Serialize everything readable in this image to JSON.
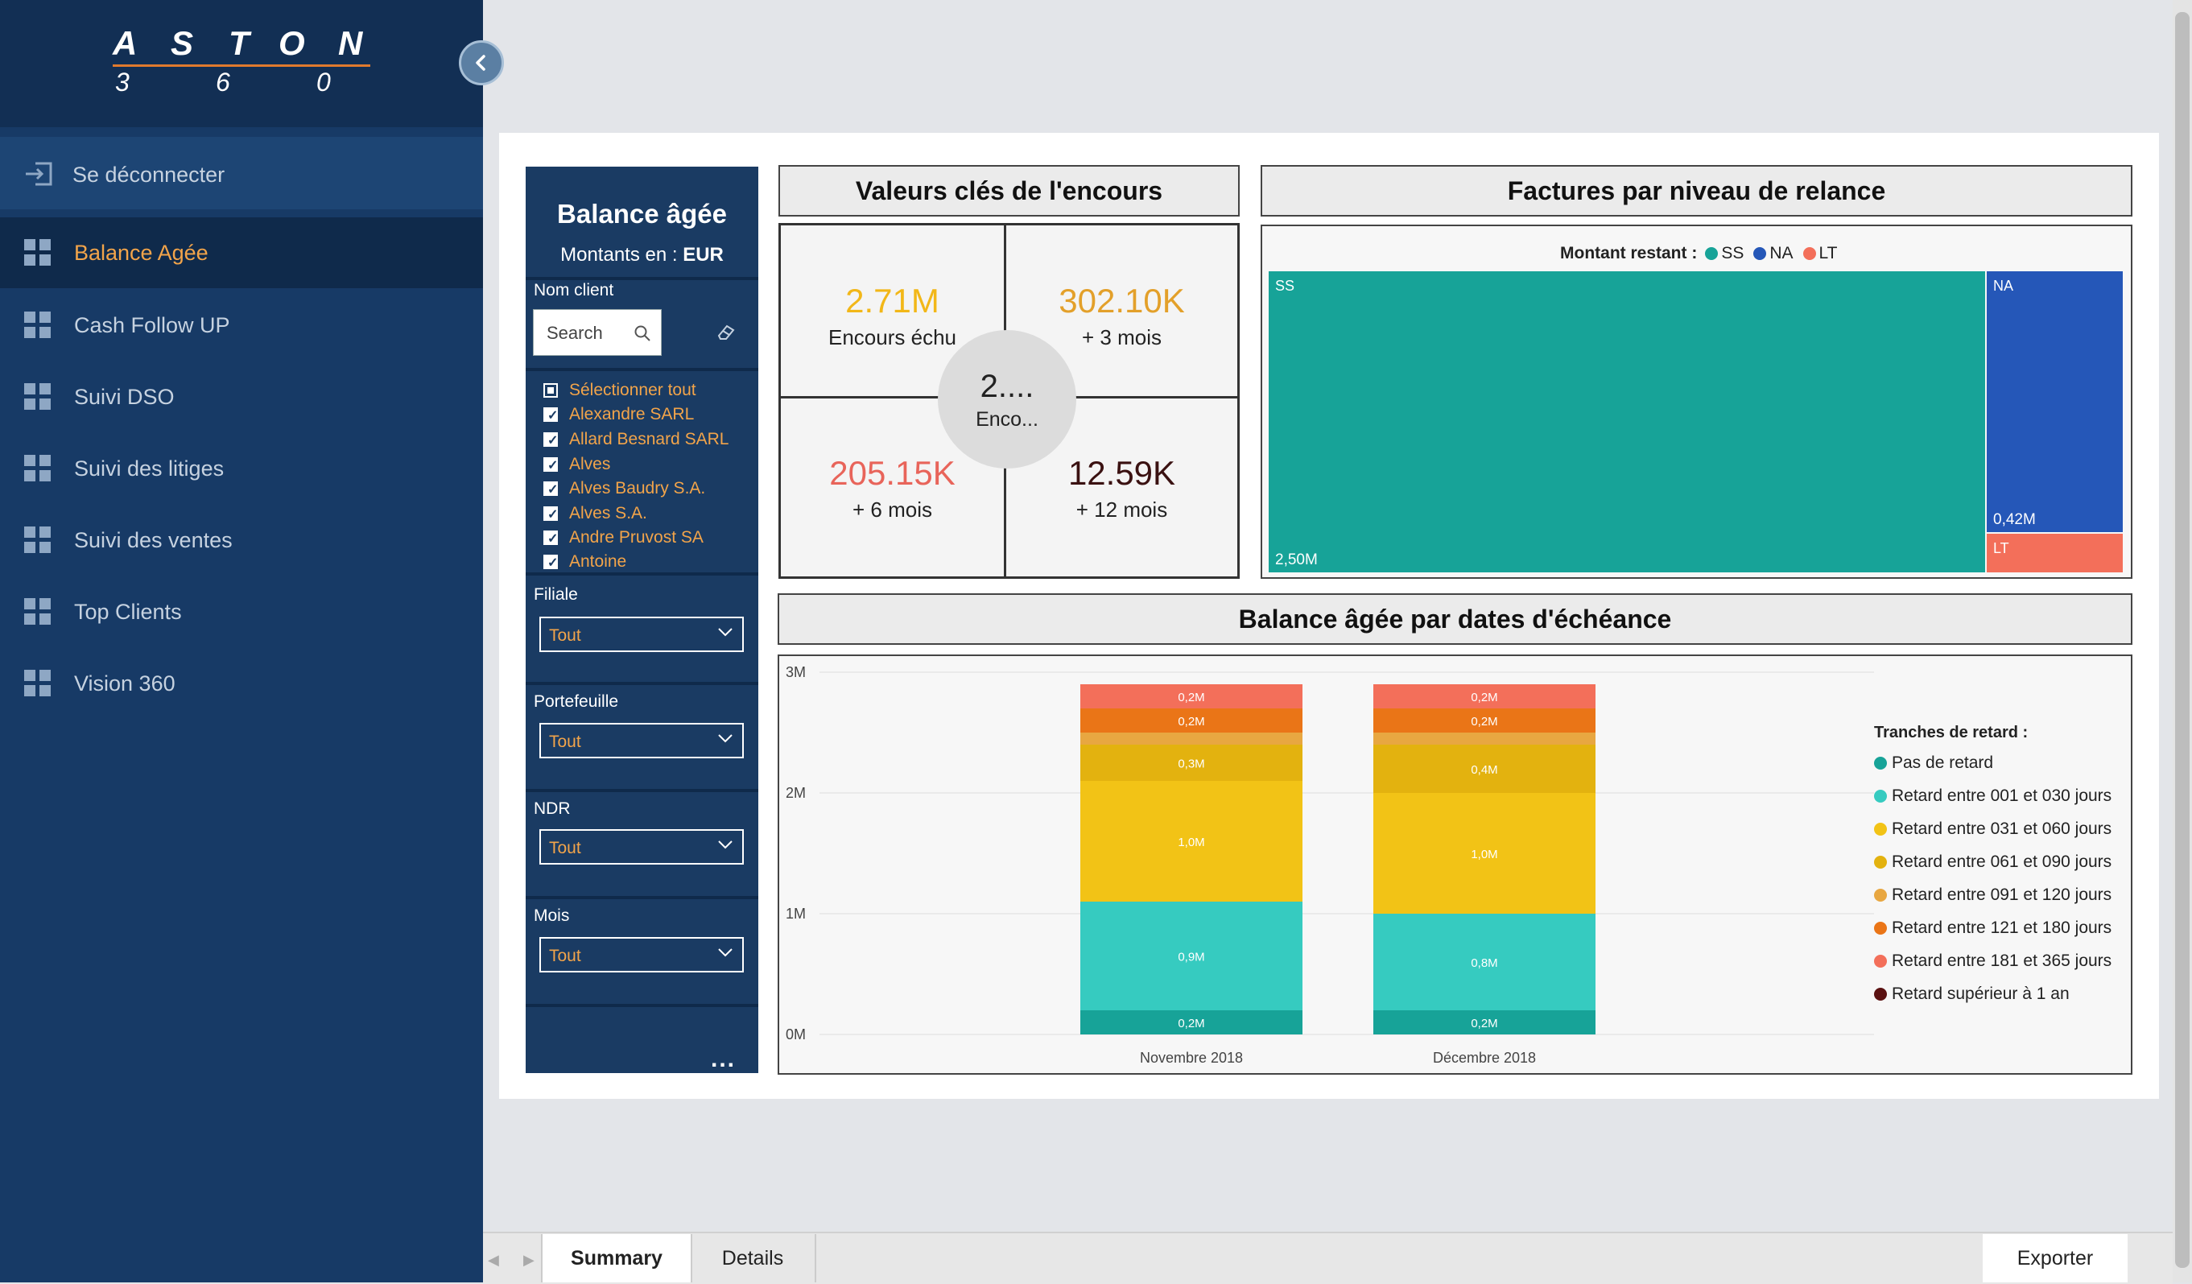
{
  "logo": {
    "letters": [
      "A",
      "S",
      "T",
      "O",
      "N"
    ],
    "numbers": [
      "3",
      "6",
      "0"
    ]
  },
  "nav": {
    "logout": "Se déconnecter",
    "items": [
      {
        "label": "Balance Agée",
        "active": true
      },
      {
        "label": "Cash Follow UP",
        "active": false
      },
      {
        "label": "Suivi DSO",
        "active": false
      },
      {
        "label": "Suivi des litiges",
        "active": false
      },
      {
        "label": "Suivi des ventes",
        "active": false
      },
      {
        "label": "Top Clients",
        "active": false
      },
      {
        "label": "Vision 360",
        "active": false
      }
    ]
  },
  "filters": {
    "title": "Balance âgée",
    "currency_prefix": "Montants en :",
    "currency": "EUR",
    "client_label": "Nom client",
    "search_placeholder": "Search",
    "select_all": "Sélectionner tout",
    "clients": [
      "Alexandre SARL",
      "Allard Besnard SARL",
      "Alves",
      "Alves Baudry S.A.",
      "Alves S.A.",
      "Andre Pruvost SA",
      "Antoine"
    ],
    "filiale_label": "Filiale",
    "filiale_value": "Tout",
    "portefeuille_label": "Portefeuille",
    "portefeuille_value": "Tout",
    "ndr_label": "NDR",
    "ndr_value": "Tout",
    "mois_label": "Mois",
    "mois_value": "Tout",
    "more": "..."
  },
  "kpi": {
    "title": "Valeurs clés de l'encours",
    "cells": [
      {
        "value": "2.71M",
        "label": "Encours échu",
        "color": "#f2b718"
      },
      {
        "value": "302.10K",
        "label": "+ 3 mois",
        "color": "#e3a02a"
      },
      {
        "value": "205.15K",
        "label": "+ 6 mois",
        "color": "#e8645a"
      },
      {
        "value": "12.59K",
        "label": "+ 12 mois",
        "color": "#3a1111"
      }
    ],
    "center_value": "2....",
    "center_label": "Enco..."
  },
  "treemap": {
    "title": "Factures par niveau de relance",
    "legend_title": "Montant restant :",
    "legend": [
      {
        "name": "SS",
        "color": "#17a398"
      },
      {
        "name": "NA",
        "color": "#2557b8"
      },
      {
        "name": "LT",
        "color": "#f36f5a"
      }
    ],
    "tiles": [
      {
        "name": "SS",
        "value_label": "2,50M",
        "value": 2.5
      },
      {
        "name": "NA",
        "value_label": "0,42M",
        "value": 0.42
      },
      {
        "name": "LT",
        "value_label": "",
        "value": 0.08
      }
    ]
  },
  "chart_data": {
    "type": "bar",
    "title": "Balance âgée par dates d'échéance",
    "stacked": true,
    "categories": [
      "Novembre 2018",
      "Décembre 2018"
    ],
    "y_ticks": [
      "0M",
      "1M",
      "2M",
      "3M"
    ],
    "ylim": [
      0,
      3
    ],
    "legend_title": "Tranches de retard :",
    "legend_position": "right",
    "series": [
      {
        "name": "Pas de retard",
        "color": "#17a398",
        "values": [
          0.2,
          0.2
        ],
        "labels": [
          "0,2M",
          "0,2M"
        ]
      },
      {
        "name": "Retard entre 001 et 030 jours",
        "color": "#36cbc0",
        "values": [
          0.9,
          0.8
        ],
        "labels": [
          "0,9M",
          "0,8M"
        ]
      },
      {
        "name": "Retard entre 031 et 060 jours",
        "color": "#f2c316",
        "values": [
          1.0,
          1.0
        ],
        "labels": [
          "1,0M",
          "1,0M"
        ]
      },
      {
        "name": "Retard entre 061 et 090 jours",
        "color": "#e3b20f",
        "values": [
          0.3,
          0.4
        ],
        "labels": [
          "0,3M",
          "0,4M"
        ]
      },
      {
        "name": "Retard entre 091 et 120 jours",
        "color": "#e8a741",
        "values": [
          0.1,
          0.1
        ],
        "labels": [
          "",
          ""
        ]
      },
      {
        "name": "Retard entre 121 et 180 jours",
        "color": "#ea7517",
        "values": [
          0.2,
          0.2
        ],
        "labels": [
          "0,2M",
          "0,2M"
        ]
      },
      {
        "name": "Retard entre 181 et 365 jours",
        "color": "#f36f5a",
        "values": [
          0.2,
          0.2
        ],
        "labels": [
          "0,2M",
          "0,2M"
        ]
      },
      {
        "name": "Retard supérieur à 1 an",
        "color": "#5a1111",
        "values": [
          0.0,
          0.0
        ],
        "labels": [
          "",
          ""
        ]
      }
    ]
  },
  "tabs": {
    "summary": "Summary",
    "details": "Details",
    "export": "Exporter"
  }
}
